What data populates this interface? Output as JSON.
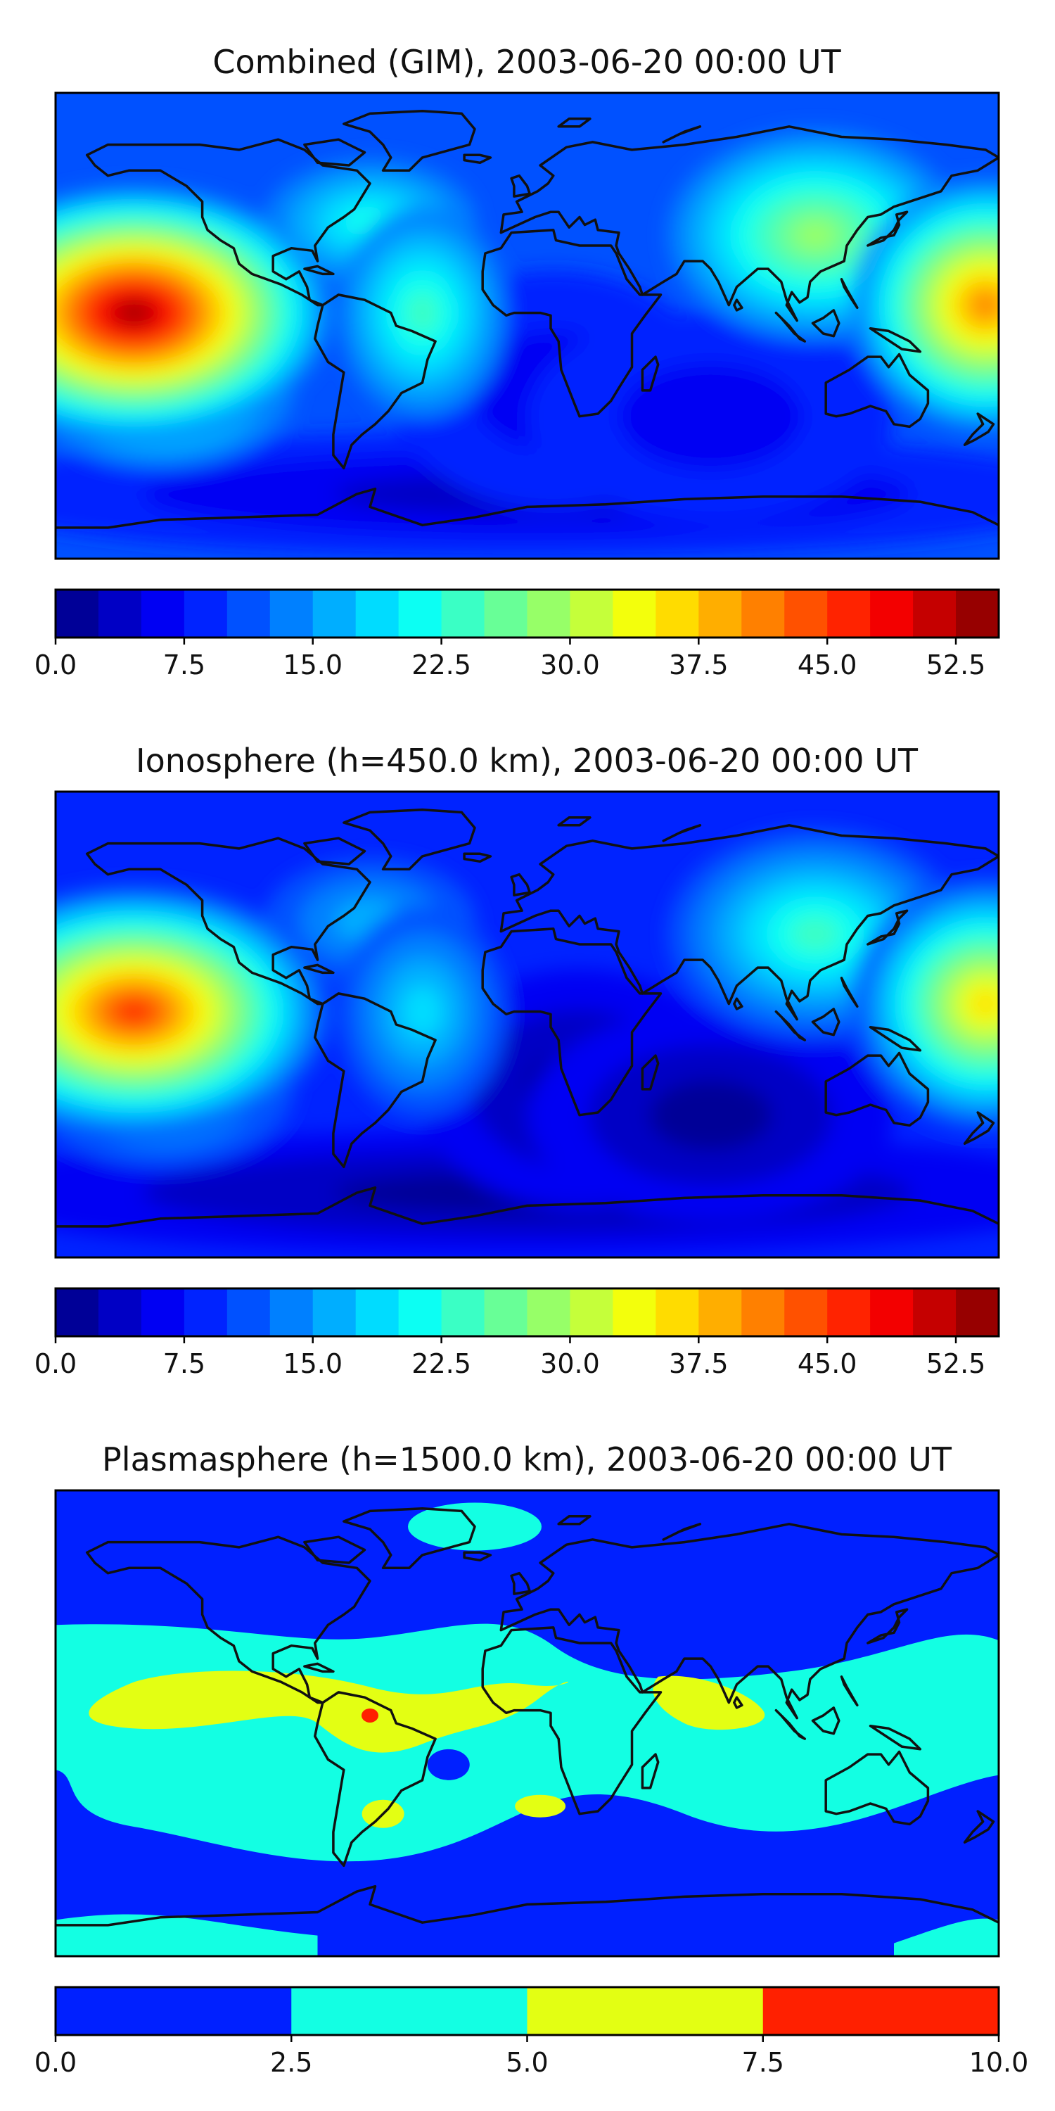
{
  "figure": {
    "type": "contour-map",
    "colormap": "jet"
  },
  "chart_data": [
    {
      "type": "heatmap",
      "title": "Combined (GIM), 2003-06-20 00:00 UT",
      "colorbar": {
        "min": 0.0,
        "max": 55.0,
        "step": 2.5,
        "ticks": [
          0.0,
          7.5,
          15.0,
          22.5,
          30.0,
          37.5,
          45.0,
          52.5
        ],
        "tick_labels": [
          "0.0",
          "7.5",
          "15.0",
          "22.5",
          "30.0",
          "37.5",
          "45.0",
          "52.5"
        ]
      },
      "base_level": 11,
      "features": [
        {
          "name": "east-pacific-maximum",
          "lon": -150,
          "lat": 5,
          "peak": 54
        },
        {
          "name": "west-pacific-maximum",
          "lon": 175,
          "lat": 8,
          "peak": 40
        },
        {
          "name": "south-pacific-band",
          "lon": -140,
          "lat": -25,
          "peak": 24
        },
        {
          "name": "north-atlantic-band",
          "lon": -60,
          "lat": 40,
          "peak": 22
        },
        {
          "name": "south-american-band",
          "lon": -40,
          "lat": 5,
          "peak": 23
        },
        {
          "name": "asian-band",
          "lon": 110,
          "lat": 35,
          "peak": 28
        },
        {
          "name": "atlantic-trough",
          "lon": 10,
          "lat": -25,
          "peak": 5
        },
        {
          "name": "indian-ocean-trough",
          "lon": 70,
          "lat": -35,
          "peak": 5
        },
        {
          "name": "antarctic-trough",
          "lon": 0,
          "lat": -65,
          "peak": 3
        }
      ]
    },
    {
      "type": "heatmap",
      "title": "Ionosphere  (h=450.0 km), 2003-06-20 00:00 UT",
      "colorbar": {
        "min": 0.0,
        "max": 55.0,
        "step": 2.5,
        "ticks": [
          0.0,
          7.5,
          15.0,
          22.5,
          30.0,
          37.5,
          45.0,
          52.5
        ],
        "tick_labels": [
          "0.0",
          "7.5",
          "15.0",
          "22.5",
          "30.0",
          "37.5",
          "45.0",
          "52.5"
        ]
      },
      "base_level": 9,
      "features": [
        {
          "name": "east-pacific-maximum",
          "lon": -150,
          "lat": 5,
          "peak": 47
        },
        {
          "name": "west-pacific-maximum",
          "lon": 175,
          "lat": 8,
          "peak": 36
        },
        {
          "name": "south-pacific-band",
          "lon": -140,
          "lat": -25,
          "peak": 20
        },
        {
          "name": "north-atlantic-band",
          "lon": -60,
          "lat": 40,
          "peak": 17
        },
        {
          "name": "south-american-band",
          "lon": -40,
          "lat": 5,
          "peak": 18
        },
        {
          "name": "asian-band",
          "lon": 110,
          "lat": 35,
          "peak": 23
        },
        {
          "name": "atlantic-trough",
          "lon": 20,
          "lat": -25,
          "peak": 2
        },
        {
          "name": "indian-ocean-trough",
          "lon": 70,
          "lat": -35,
          "peak": 2
        },
        {
          "name": "antarctic-trough",
          "lon": 0,
          "lat": -65,
          "peak": 2
        }
      ]
    },
    {
      "type": "heatmap",
      "title": "Plasmasphere (h=1500.0 km), 2003-06-20 00:00 UT",
      "colorbar": {
        "min": 0.0,
        "max": 10.0,
        "step": 2.5,
        "ticks": [
          0.0,
          2.5,
          5.0,
          7.5,
          10.0
        ],
        "tick_labels": [
          "0.0",
          "2.5",
          "5.0",
          "7.5",
          "10.0"
        ]
      },
      "levels": [
        {
          "range": [
            0.0,
            2.5
          ],
          "color": "#0020ff"
        },
        {
          "range": [
            2.5,
            5.0
          ],
          "color": "#13ffe3"
        },
        {
          "range": [
            5.0,
            7.5
          ],
          "color": "#e3ff13"
        },
        {
          "range": [
            7.5,
            10.0
          ],
          "color": "#ff2000"
        }
      ],
      "features": [
        {
          "name": "low-latitude-band",
          "lat_range": [
            -45,
            35
          ],
          "value": 3.5
        },
        {
          "name": "tropical-band",
          "lat_range": [
            -10,
            18
          ],
          "value": 6
        },
        {
          "name": "amazon-maximum",
          "lon": -60,
          "lat": 3,
          "value": 8
        }
      ]
    }
  ]
}
